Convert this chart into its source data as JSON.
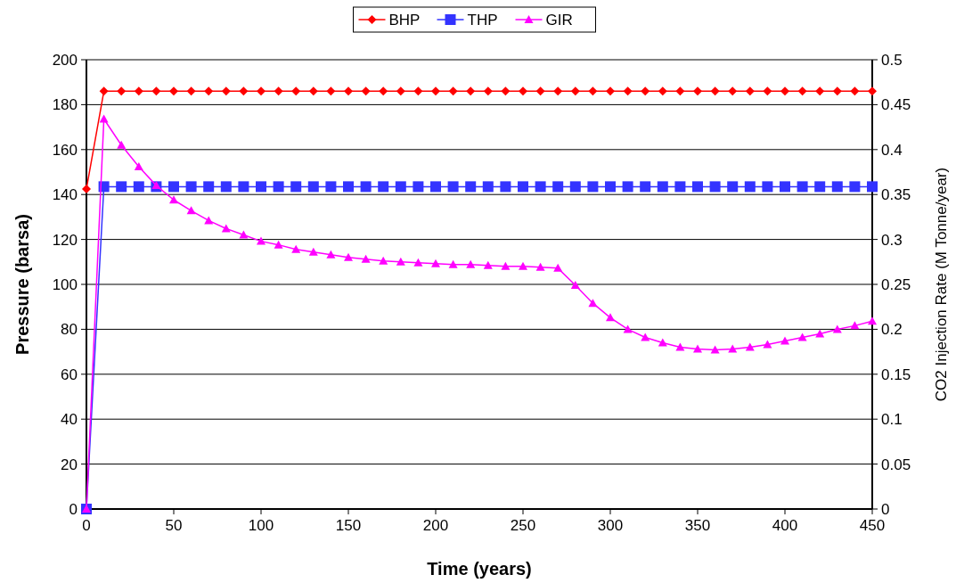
{
  "chart_data": {
    "type": "line",
    "xlabel": "Time (years)",
    "ylabel": "Pressure (barsa)",
    "y2label": "CO2 Injection Rate (M Tonne/year)",
    "x": [
      0,
      10,
      20,
      30,
      40,
      50,
      60,
      70,
      80,
      90,
      100,
      110,
      120,
      130,
      140,
      150,
      160,
      170,
      180,
      190,
      200,
      210,
      220,
      230,
      240,
      250,
      260,
      270,
      280,
      290,
      300,
      310,
      320,
      330,
      340,
      350,
      360,
      370,
      380,
      390,
      400,
      410,
      420,
      430,
      440,
      450
    ],
    "xlim": [
      0,
      450
    ],
    "xticks": [
      0,
      50,
      100,
      150,
      200,
      250,
      300,
      350,
      400,
      450
    ],
    "ylim": [
      0,
      200
    ],
    "yticks": [
      0,
      20,
      40,
      60,
      80,
      100,
      120,
      140,
      160,
      180,
      200
    ],
    "y2lim": [
      0,
      0.5
    ],
    "y2ticks": [
      0,
      0.05,
      0.1,
      0.15,
      0.2,
      0.25,
      0.3,
      0.35,
      0.4,
      0.45,
      0.5
    ],
    "grid": "y",
    "legend": "top",
    "series": [
      {
        "name": "BHP",
        "color": "#ff0000",
        "marker": "diamond",
        "values": [
          142.5,
          186,
          186,
          186,
          186,
          186,
          186,
          186,
          186,
          186,
          186,
          186,
          186,
          186,
          186,
          186,
          186,
          186,
          186,
          186,
          186,
          186,
          186,
          186,
          186,
          186,
          186,
          186,
          186,
          186,
          186,
          186,
          186,
          186,
          186,
          186,
          186,
          186,
          186,
          186,
          186,
          186,
          186,
          186,
          186,
          186
        ]
      },
      {
        "name": "THP",
        "color": "#3333ff",
        "marker": "square",
        "values": [
          0,
          143.5,
          143.5,
          143.5,
          143.5,
          143.5,
          143.5,
          143.5,
          143.5,
          143.5,
          143.5,
          143.5,
          143.5,
          143.5,
          143.5,
          143.5,
          143.5,
          143.5,
          143.5,
          143.5,
          143.5,
          143.5,
          143.5,
          143.5,
          143.5,
          143.5,
          143.5,
          143.5,
          143.5,
          143.5,
          143.5,
          143.5,
          143.5,
          143.5,
          143.5,
          143.5,
          143.5,
          143.5,
          143.5,
          143.5,
          143.5,
          143.5,
          143.5,
          143.5,
          143.5,
          143.5
        ]
      },
      {
        "name": "GIR",
        "color": "#ff00ff",
        "marker": "triangle",
        "axis": "y2",
        "values": [
          0,
          0.434,
          0.405,
          0.381,
          0.36,
          0.344,
          0.332,
          0.321,
          0.312,
          0.305,
          0.298,
          0.294,
          0.289,
          0.286,
          0.283,
          0.28,
          0.278,
          0.276,
          0.275,
          0.274,
          0.273,
          0.272,
          0.272,
          0.271,
          0.27,
          0.27,
          0.269,
          0.268,
          0.249,
          0.229,
          0.213,
          0.2,
          0.191,
          0.185,
          0.18,
          0.178,
          0.177,
          0.178,
          0.18,
          0.183,
          0.187,
          0.191,
          0.195,
          0.2,
          0.204,
          0.209
        ]
      }
    ]
  }
}
